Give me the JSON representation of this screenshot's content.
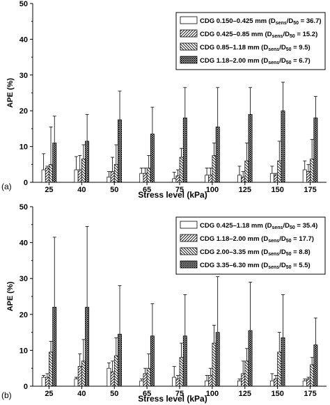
{
  "chart_data": [
    {
      "panel": "(a)",
      "type": "bar",
      "xlabel": "Stress level (kPa)",
      "ylabel": "APE (%)",
      "ylim": [
        0,
        50
      ],
      "yticks": [
        0,
        10,
        20,
        30,
        40,
        50
      ],
      "categories": [
        "25",
        "40",
        "50",
        "65",
        "75",
        "100",
        "125",
        "150",
        "175"
      ],
      "legend_position": "top-right",
      "series": [
        {
          "name": "CDG 0.150–0.425 mm (D",
          "ratio": "36.7",
          "pattern": "none",
          "values": [
            3.5,
            3.5,
            1.5,
            2.5,
            1.0,
            2.0,
            2.0,
            2.5,
            3.5
          ],
          "errors": [
            8.0,
            7.2,
            3.0,
            4.0,
            2.8,
            4.0,
            4.5,
            4.5,
            6.0
          ]
        },
        {
          "name": "CDG 0.425–0.85 mm (D",
          "ratio": "15.2",
          "pattern": "hatch-fwd",
          "values": [
            4.0,
            3.5,
            3.0,
            2.5,
            1.8,
            2.0,
            1.5,
            2.0,
            3.0
          ],
          "errors": [
            4.5,
            7.5,
            7.0,
            4.0,
            3.5,
            4.0,
            3.0,
            2.5,
            5.0
          ]
        },
        {
          "name": "CDG 0.85–1.18 mm (D",
          "ratio": "9.5",
          "pattern": "hatch-back",
          "values": [
            5.0,
            6.5,
            5.0,
            4.0,
            7.0,
            7.5,
            6.0,
            6.0,
            6.5
          ],
          "errors": [
            15.5,
            10.5,
            10.5,
            7.5,
            9.5,
            11.0,
            11.0,
            11.5,
            12.0
          ]
        },
        {
          "name": "CDG 1.18–2.00 mm (D",
          "ratio": "6.7",
          "pattern": "crosshatch",
          "values": [
            11.0,
            11.5,
            17.5,
            13.5,
            18.0,
            15.5,
            19.0,
            20.0,
            18.0
          ],
          "errors": [
            18.5,
            19.0,
            25.5,
            21.0,
            26.5,
            26.5,
            26.5,
            28.0,
            24.0
          ]
        }
      ]
    },
    {
      "panel": "(b)",
      "type": "bar",
      "xlabel": "Stress level (kPa)",
      "ylabel": "APE (%)",
      "ylim": [
        0,
        50
      ],
      "yticks": [
        0,
        10,
        20,
        30,
        40,
        50
      ],
      "categories": [
        "25",
        "40",
        "50",
        "65",
        "75",
        "100",
        "125",
        "150",
        "175"
      ],
      "legend_position": "top-right",
      "series": [
        {
          "name": "CDG 0.425–1.18 mm (D",
          "ratio": "35.4",
          "pattern": "none",
          "values": [
            2.5,
            2.0,
            5.0,
            1.5,
            2.5,
            1.5,
            1.5,
            1.5,
            1.5
          ],
          "errors": [
            3.0,
            2.5,
            6.5,
            2.0,
            5.5,
            3.0,
            2.0,
            3.5,
            2.0
          ]
        },
        {
          "name": "CDG 1.18–2.00 mm (D",
          "ratio": "17.7",
          "pattern": "hatch-fwd",
          "values": [
            2.5,
            5.5,
            4.0,
            3.5,
            2.0,
            3.0,
            3.5,
            2.0,
            2.0
          ],
          "errors": [
            3.5,
            9.0,
            7.0,
            5.0,
            3.0,
            5.0,
            7.0,
            3.0,
            2.5
          ]
        },
        {
          "name": "CDG 2.00–3.35 mm (D",
          "ratio": "8.8",
          "pattern": "hatch-back",
          "values": [
            9.5,
            7.0,
            8.5,
            5.0,
            8.0,
            12.0,
            7.0,
            9.5,
            6.0
          ],
          "errors": [
            12.5,
            13.0,
            13.5,
            9.0,
            12.0,
            17.0,
            10.5,
            15.0,
            8.0
          ]
        },
        {
          "name": "CDG 3.35–6.30 mm (D",
          "ratio": "5.5",
          "pattern": "crosshatch",
          "values": [
            22.0,
            22.0,
            14.5,
            14.0,
            14.0,
            15.0,
            15.5,
            13.5,
            11.5
          ],
          "errors": [
            41.5,
            44.5,
            28.0,
            23.0,
            25.5,
            30.5,
            29.0,
            25.5,
            19.0
          ]
        }
      ]
    }
  ]
}
